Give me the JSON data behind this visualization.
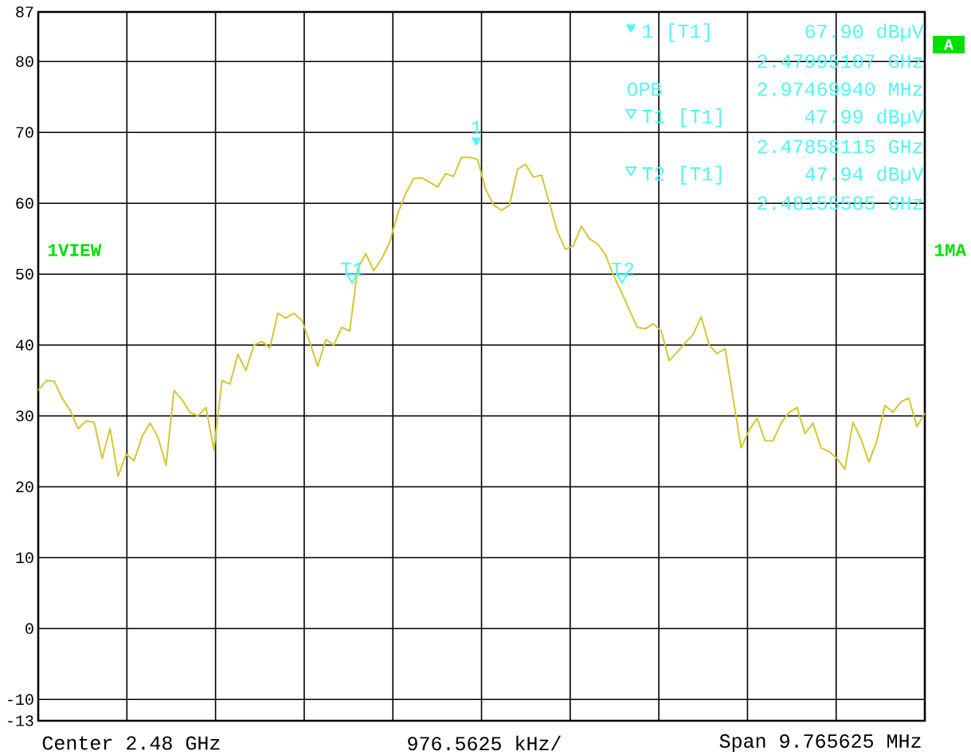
{
  "chart_data": {
    "type": "line",
    "categories": [
      null,
      null,
      null,
      null,
      null,
      null,
      null,
      null,
      null,
      null,
      null,
      null,
      null,
      null,
      null,
      null,
      null,
      null,
      null,
      null,
      null,
      null,
      null,
      null,
      null,
      null,
      null,
      null,
      null,
      null,
      null,
      null,
      null,
      null,
      null,
      null,
      null,
      null,
      null,
      null,
      null,
      null,
      null,
      null,
      null,
      null,
      null,
      null,
      null,
      null,
      null,
      null,
      null,
      null,
      null,
      null,
      null,
      null,
      null,
      null,
      null,
      null,
      null,
      null,
      null,
      null,
      null,
      null,
      null,
      null,
      null,
      null,
      null,
      null,
      null,
      null,
      null,
      null,
      null,
      null,
      null,
      null,
      null,
      null,
      null,
      null,
      null,
      null,
      null,
      null,
      null,
      null,
      null,
      null,
      null,
      null,
      null,
      null,
      null,
      null,
      null,
      null,
      null,
      null,
      null,
      null,
      null,
      null,
      null,
      null,
      null,
      null
    ],
    "ylim": [
      -13,
      87
    ],
    "yticks": [
      -13,
      -10,
      0,
      10,
      20,
      30,
      40,
      50,
      60,
      70,
      80,
      87
    ],
    "grid": true,
    "tick_labels": "y",
    "series": [
      {
        "color": "#d6c733",
        "marker": "none",
        "line_style": "solid",
        "values": [
          33.6,
          35.0,
          34.9,
          32.5,
          30.8,
          28.2,
          29.3,
          29.1,
          24.0,
          28.2,
          21.5,
          24.6,
          23.7,
          27.1,
          29.0,
          27.0,
          23.0,
          33.6,
          32.3,
          30.5,
          30.0,
          31.2,
          25.2,
          35.0,
          34.5,
          38.7,
          36.4,
          40.0,
          40.5,
          39.6,
          44.5,
          43.8,
          44.5,
          43.5,
          40.4,
          37.0,
          40.8,
          40.0,
          42.5,
          42.0,
          50.8,
          52.9,
          50.5,
          52.2,
          54.5,
          58.5,
          61.4,
          63.5,
          63.6,
          63.0,
          62.3,
          64.2,
          63.8,
          66.5,
          66.5,
          66.2,
          62.0,
          59.8,
          59.0,
          59.7,
          64.8,
          65.5,
          63.7,
          64.0,
          60.0,
          56.0,
          53.5,
          54.0,
          56.8,
          55.0,
          54.3,
          52.8,
          49.9,
          47.5,
          45.0,
          42.5,
          42.3,
          43.0,
          42.0,
          37.8,
          39.0,
          40.3,
          41.5,
          44.0,
          40.0,
          38.8,
          39.5,
          32.5,
          25.5,
          28.0,
          29.7,
          26.5,
          26.5,
          29.0,
          30.5,
          31.2,
          27.5,
          29.0,
          25.5,
          25.0,
          24.0,
          22.5,
          29.1,
          26.8,
          23.5,
          26.5,
          31.5,
          30.5,
          32.0,
          32.5,
          28.5,
          30.4
        ]
      }
    ],
    "annotations": [
      "1",
      "T1",
      "T2",
      "1 [T1]",
      "67.90 dBµV",
      "2.47995107 GHz",
      "OPB",
      "2.97469940 MHz",
      "T1 [T1]",
      "47.99 dBµV",
      "2.47858115 GHz",
      "T2 [T1]",
      "47.94 dBµV",
      "2.48155585 GHz",
      "1VIEW",
      "1MA",
      "A",
      "Center 2.48 GHz",
      "976.5625 kHz/",
      "Span 9.765625 MHz"
    ]
  }
}
